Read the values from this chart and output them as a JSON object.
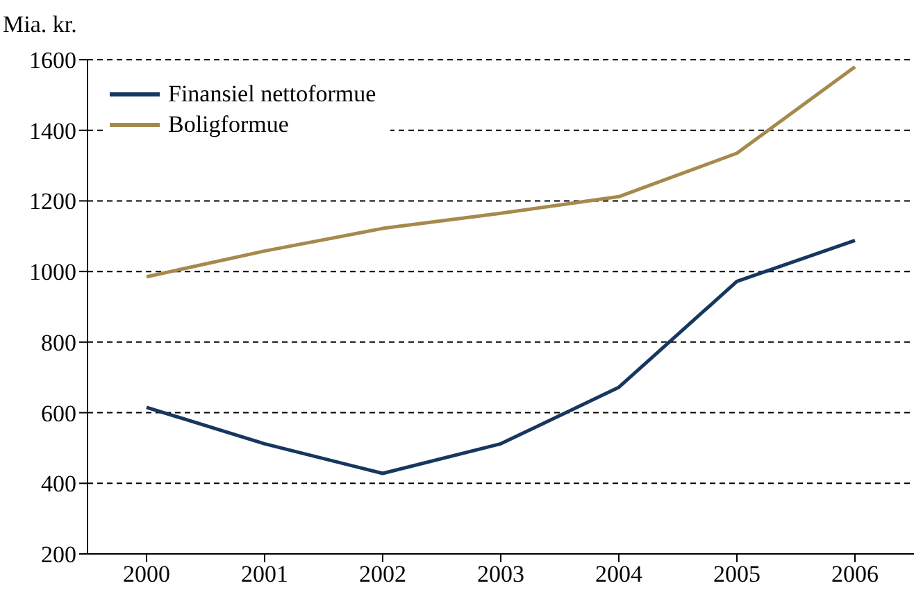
{
  "chart_data": {
    "type": "line",
    "ylabel": "Mia. kr.",
    "categories": [
      "2000",
      "2001",
      "2002",
      "2003",
      "2004",
      "2005",
      "2006"
    ],
    "series": [
      {
        "name": "Finansiel nettoformue",
        "color": "#17375e",
        "values": [
          615,
          512,
          428,
          512,
          672,
          972,
          1088
        ]
      },
      {
        "name": "Boligformue",
        "color": "#a68a4c",
        "values": [
          985,
          1058,
          1122,
          1165,
          1212,
          1335,
          1580
        ]
      }
    ],
    "ylim": [
      200,
      1600
    ],
    "yticks": [
      200,
      400,
      600,
      800,
      1000,
      1200,
      1400,
      1600
    ],
    "grid": "y",
    "legend": "top left",
    "marker": "none",
    "line_style": "solid"
  }
}
